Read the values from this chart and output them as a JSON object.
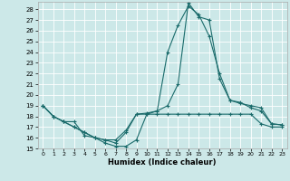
{
  "xlabel": "Humidex (Indice chaleur)",
  "ylabel": "",
  "background_color": "#cce8e8",
  "grid_color": "#ffffff",
  "line_color": "#1a6b6b",
  "xlim": [
    -0.5,
    23.5
  ],
  "ylim": [
    15,
    28.7
  ],
  "yticks": [
    15,
    16,
    17,
    18,
    19,
    20,
    21,
    22,
    23,
    24,
    25,
    26,
    27,
    28
  ],
  "xticks": [
    0,
    1,
    2,
    3,
    4,
    5,
    6,
    7,
    8,
    9,
    10,
    11,
    12,
    13,
    14,
    15,
    16,
    17,
    18,
    19,
    20,
    21,
    22,
    23
  ],
  "series": [
    {
      "x": [
        0,
        1,
        2,
        3,
        4,
        5,
        6,
        7,
        8,
        9,
        10,
        11,
        12,
        13,
        14,
        15,
        16,
        17,
        18,
        19,
        20,
        21,
        22,
        23
      ],
      "y": [
        19,
        18,
        17.5,
        17,
        16.5,
        16,
        15.8,
        15.5,
        16.5,
        18.2,
        18.2,
        18.2,
        18.2,
        18.2,
        18.2,
        18.2,
        18.2,
        18.2,
        18.2,
        18.2,
        18.2,
        17.3,
        17.0,
        17.0
      ]
    },
    {
      "x": [
        0,
        1,
        2,
        3,
        4,
        5,
        6,
        7,
        8,
        9,
        10,
        11,
        12,
        13,
        14,
        15,
        16,
        17,
        18,
        19,
        20,
        21,
        22,
        23
      ],
      "y": [
        19,
        18,
        17.5,
        17.5,
        16.2,
        16,
        15.5,
        15.2,
        15.2,
        15.8,
        18.2,
        18.5,
        24,
        26.5,
        28.3,
        27.5,
        25.5,
        22,
        19.5,
        19.3,
        18.8,
        18.5,
        17.3,
        17.2
      ]
    },
    {
      "x": [
        0,
        1,
        2,
        3,
        4,
        5,
        6,
        7,
        8,
        9,
        10,
        11,
        12,
        13,
        14,
        15,
        16,
        17,
        18,
        19,
        20,
        21,
        22,
        23
      ],
      "y": [
        19,
        18,
        17.5,
        17,
        16.5,
        16,
        15.8,
        15.8,
        16.7,
        18.2,
        18.3,
        18.5,
        19.0,
        21.0,
        28.6,
        27.3,
        27.0,
        21.5,
        19.5,
        19.2,
        19.0,
        18.8,
        17.3,
        17.2
      ]
    }
  ]
}
